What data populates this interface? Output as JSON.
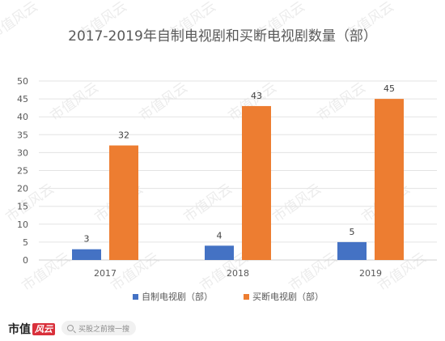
{
  "chart_data": {
    "type": "bar",
    "title": "2017-2019年自制电视剧和买断电视剧数量（部）",
    "categories": [
      "2017",
      "2018",
      "2019"
    ],
    "series": [
      {
        "name": "自制电视剧（部）",
        "values": [
          3,
          4,
          5
        ],
        "color": "#4472c4"
      },
      {
        "name": "买断电视剧（部）",
        "values": [
          32,
          43,
          45
        ],
        "color": "#ed7d31"
      }
    ],
    "ylim": [
      0,
      50
    ],
    "yticks": [
      0,
      5,
      10,
      15,
      20,
      25,
      30,
      35,
      40,
      45,
      50
    ],
    "grid": true,
    "legend": "bottom"
  },
  "watermark": "市值风云",
  "footer": {
    "logo_text": "市值",
    "logo_mark": "风云",
    "search_placeholder": "买股之前搜一搜"
  }
}
